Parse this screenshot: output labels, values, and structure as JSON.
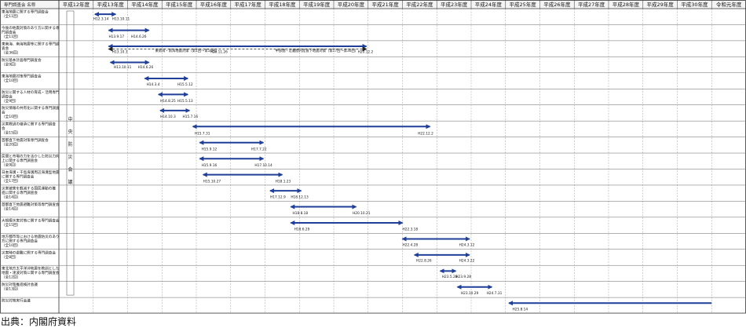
{
  "chart_data": {
    "type": "gantt",
    "header_label": "専門調査会 名称",
    "group_label": "中央防災会議",
    "years": [
      "平成12年度",
      "平成13年度",
      "平成14年度",
      "平成15年度",
      "平成16年度",
      "平成17年度",
      "平成18年度",
      "平成19年度",
      "平成20年度",
      "平成21年度",
      "平成22年度",
      "平成23年度",
      "平成24年度",
      "平成25年度",
      "平成26年度",
      "平成27年度",
      "平成28年度",
      "平成29年度",
      "平成30年度",
      "令和元年度"
    ],
    "rows": [
      {
        "name": [
          "東海地震に関する専門調査会",
          "（全11回）"
        ],
        "bars": [
          {
            "start": 13.05,
            "end": 13.65,
            "dashed": false
          }
        ],
        "labels": [
          {
            "text": "H12.3.14",
            "x": 13.0,
            "row_pos": 0.72
          },
          {
            "text": "H13.10.11",
            "x": 13.55,
            "row_pos": 0.72
          }
        ]
      },
      {
        "name": [
          "今後の地震対策のあり方に関する専",
          "門調査会",
          "（全11回）"
        ],
        "bars": [
          {
            "start": 13.45,
            "end": 14.62,
            "dashed": false
          }
        ],
        "labels": [
          {
            "text": "H13.9.17",
            "x": 13.45,
            "row_pos": 0.8
          },
          {
            "text": "H14.6.26",
            "x": 14.1,
            "row_pos": 0.8
          }
        ]
      },
      {
        "name": [
          "東南海、南海地震等に関する専門調",
          "査会",
          "（全36回）"
        ],
        "bars": [
          {
            "start": 13.45,
            "end": 20.95,
            "dashed": false
          },
          {
            "start": 13.45,
            "end": 20.95,
            "dashed": true
          }
        ],
        "labels": [
          {
            "text": "H13.10.3",
            "x": 13.55,
            "row_pos": 0.76
          },
          {
            "text": "東南海・南海地震対策（第1回～第16回）",
            "x": 14.8,
            "row_pos": 0.68
          },
          {
            "text": "H16.11.26",
            "x": 16.4,
            "row_pos": 0.76
          },
          {
            "text": "中部圏・近畿圏内陸直下地震対策（第17回～第36回）",
            "x": 18.3,
            "row_pos": 0.68
          },
          {
            "text": "H20.12.2",
            "x": 20.7,
            "row_pos": 0.76
          }
        ]
      },
      {
        "name": [
          "防災基本計画専門調査会",
          "（全9回）"
        ],
        "bars": [
          {
            "start": 13.5,
            "end": 14.62,
            "dashed": false
          }
        ],
        "labels": [
          {
            "text": "H13.10.11",
            "x": 13.6,
            "row_pos": 0.72
          },
          {
            "text": "H14.6.26",
            "x": 14.3,
            "row_pos": 0.72
          }
        ]
      },
      {
        "name": [
          "東海地震対策専門調査会",
          "（全10回）"
        ],
        "bars": [
          {
            "start": 14.5,
            "end": 15.75,
            "dashed": false
          }
        ],
        "labels": [
          {
            "text": "H14.3.4",
            "x": 14.55,
            "row_pos": 0.8
          },
          {
            "text": "H15.5.12",
            "x": 15.45,
            "row_pos": 0.8
          }
        ]
      },
      {
        "name": [
          "防災に関する人材の育成・活用専門",
          "調査会",
          "（全9回）"
        ],
        "bars": [
          {
            "start": 14.9,
            "end": 15.75,
            "dashed": false
          }
        ],
        "labels": [
          {
            "text": "H14.8.25",
            "x": 14.95,
            "row_pos": 0.82
          },
          {
            "text": "H15.5.13",
            "x": 15.45,
            "row_pos": 0.82
          }
        ]
      },
      {
        "name": [
          "防災情報の共有化に関する専門調査",
          "会",
          "（全10回）"
        ],
        "bars": [
          {
            "start": 14.95,
            "end": 15.8,
            "dashed": false
          }
        ],
        "labels": [
          {
            "text": "H14.10.3",
            "x": 14.95,
            "row_pos": 0.8
          },
          {
            "text": "H15.7.16",
            "x": 15.6,
            "row_pos": 0.8
          }
        ]
      },
      {
        "name": [
          "災害教訓の継承に関する専門調査",
          "会",
          "（全15回）"
        ],
        "bars": [
          {
            "start": 15.9,
            "end": 22.8,
            "dashed": false
          }
        ],
        "labels": [
          {
            "text": "H15.7.31",
            "x": 15.95,
            "row_pos": 0.84
          },
          {
            "text": "H22.12.2",
            "x": 22.45,
            "row_pos": 0.84
          }
        ]
      },
      {
        "name": [
          "首都直下地震対策専門調査会",
          "（全20回）"
        ],
        "bars": [
          {
            "start": 16.1,
            "end": 17.95,
            "dashed": false
          }
        ],
        "labels": [
          {
            "text": "H15.9.12",
            "x": 16.15,
            "row_pos": 0.82
          },
          {
            "text": "H17.7.22",
            "x": 17.6,
            "row_pos": 0.82
          }
        ]
      },
      {
        "name": [
          "民間と市場の力を活かした防災力向",
          "上に関する専門調査会",
          "（全9回）"
        ],
        "bars": [
          {
            "start": 16.1,
            "end": 17.95,
            "dashed": false
          }
        ],
        "labels": [
          {
            "text": "H15.9.16",
            "x": 16.15,
            "row_pos": 0.82
          },
          {
            "text": "H17.10.14",
            "x": 17.7,
            "row_pos": 0.82
          }
        ]
      },
      {
        "name": [
          "日本海溝・千島海溝周辺海溝型地震",
          "に関する専門調査会",
          "（全17回）"
        ],
        "bars": [
          {
            "start": 16.2,
            "end": 18.5,
            "dashed": false
          }
        ],
        "labels": [
          {
            "text": "H15.10.27",
            "x": 16.2,
            "row_pos": 0.82
          },
          {
            "text": "H18.1.23",
            "x": 18.3,
            "row_pos": 0.82
          }
        ]
      },
      {
        "name": [
          "災害被害を軽減する国民運動の推",
          "進に関する専門調査会",
          "（全14回）"
        ],
        "bars": [
          {
            "start": 18.15,
            "end": 19.05,
            "dashed": false
          }
        ],
        "labels": [
          {
            "text": "H17.12.9",
            "x": 18.15,
            "row_pos": 0.8
          },
          {
            "text": "H18.12.13",
            "x": 18.75,
            "row_pos": 0.8
          }
        ]
      },
      {
        "name": [
          "首都直下地震避難対策等専門調査会",
          "（全14回）"
        ],
        "bars": [
          {
            "start": 18.75,
            "end": 20.65,
            "dashed": false
          }
        ],
        "labels": [
          {
            "text": "H18.8.18",
            "x": 18.8,
            "row_pos": 0.82
          },
          {
            "text": "H20.10.21",
            "x": 20.55,
            "row_pos": 0.82
          }
        ]
      },
      {
        "name": [
          "大規模水害対策に関する専門調査会",
          "（全15回）"
        ],
        "bars": [
          {
            "start": 18.75,
            "end": 22.0,
            "dashed": false
          }
        ],
        "labels": [
          {
            "text": "H18.6.29",
            "x": 18.85,
            "row_pos": 0.82
          },
          {
            "text": "H22.3.18",
            "x": 22.0,
            "row_pos": 0.82
          }
        ]
      },
      {
        "name": [
          "地方都市等における地震防災のあり",
          "方に関する専門調査会",
          "（全10回）"
        ],
        "bars": [
          {
            "start": 22.0,
            "end": 23.95,
            "dashed": false
          }
        ],
        "labels": [
          {
            "text": "H22.4.28",
            "x": 22.0,
            "row_pos": 0.78
          },
          {
            "text": "H24.3.12",
            "x": 23.65,
            "row_pos": 0.78
          }
        ]
      },
      {
        "name": [
          "災害時の避難に関する専門調査会",
          "（全8回）"
        ],
        "bars": [
          {
            "start": 22.35,
            "end": 23.95,
            "dashed": false
          }
        ],
        "labels": [
          {
            "text": "H22.8.26",
            "x": 22.4,
            "row_pos": 0.78
          },
          {
            "text": "H24.3.22",
            "x": 23.65,
            "row_pos": 0.78
          }
        ]
      },
      {
        "name": [
          "東北地方太平洋沖地震を教訓とした",
          "地震・津波対策に関する専門調査会",
          "（全12回）"
        ],
        "bars": [
          {
            "start": 23.1,
            "end": 23.55,
            "dashed": false
          }
        ],
        "labels": [
          {
            "text": "H23.5.28",
            "x": 23.15,
            "row_pos": 0.78
          },
          {
            "text": "H23.9.28",
            "x": 23.55,
            "row_pos": 0.78
          }
        ]
      },
      {
        "name": [
          "防災対策推進検討会議",
          "（全13回）"
        ],
        "bars": [
          {
            "start": 23.6,
            "end": 24.6,
            "dashed": false
          }
        ],
        "labels": [
          {
            "text": "H23.10.29",
            "x": 23.7,
            "row_pos": 0.8
          },
          {
            "text": "H24.7.31",
            "x": 24.45,
            "row_pos": 0.8
          }
        ]
      },
      {
        "name": [
          "防災対策実行会議"
        ],
        "bars": [
          {
            "start": 25.1,
            "end": 31.0,
            "dashed": false,
            "open_end": true
          }
        ],
        "labels": [
          {
            "text": "H25.8.14",
            "x": 25.2,
            "row_pos": 0.8
          }
        ]
      }
    ]
  },
  "footer": {
    "source": "出典：内閣府資料"
  }
}
